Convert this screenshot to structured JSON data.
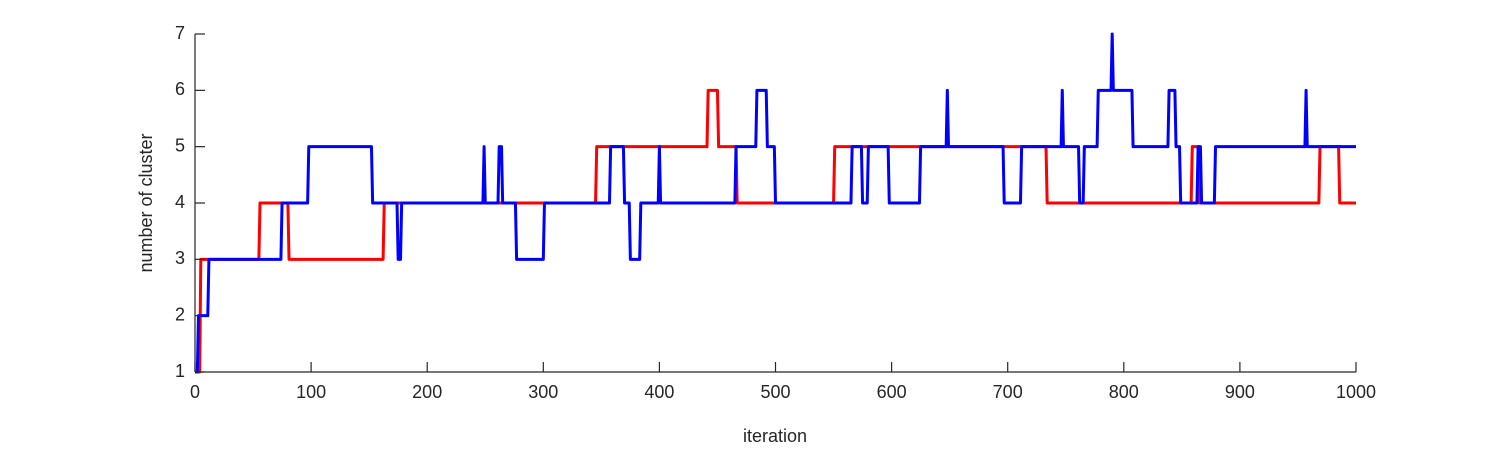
{
  "chart_data": {
    "type": "line",
    "x_label": "iteration",
    "y_label": "number of cluster",
    "xlim": [
      0,
      1000
    ],
    "xticks": [
      0,
      100,
      200,
      300,
      400,
      500,
      600,
      700,
      800,
      900,
      1000
    ],
    "ylim": [
      1,
      7
    ],
    "yticks": [
      1,
      2,
      3,
      4,
      5,
      6,
      7
    ],
    "series": [
      {
        "color": "#ff0000",
        "x": [
          0,
          4,
          5,
          55,
          56,
          80,
          81,
          162,
          163,
          345,
          346,
          441,
          442,
          450,
          451,
          466,
          467,
          550,
          551,
          733,
          734,
          858,
          859,
          864,
          865,
          968,
          969,
          985,
          986,
          1000
        ],
        "values": [
          1,
          1,
          3,
          3,
          4,
          4,
          3,
          3,
          4,
          4,
          5,
          5,
          6,
          6,
          5,
          5,
          4,
          4,
          5,
          5,
          4,
          4,
          5,
          5,
          4,
          4,
          5,
          5,
          4,
          4
        ]
      },
      {
        "color": "#0000ff",
        "x": [
          0,
          2,
          3,
          11,
          12,
          74,
          75,
          97,
          98,
          152,
          153,
          174,
          175,
          177,
          178,
          248,
          249,
          250,
          261,
          262,
          264,
          265,
          276,
          277,
          300,
          301,
          357,
          358,
          369,
          370,
          374,
          375,
          383,
          384,
          399,
          400,
          401,
          465,
          466,
          483,
          484,
          492,
          493,
          499,
          500,
          565,
          566,
          574,
          575,
          579,
          580,
          597,
          598,
          624,
          625,
          647,
          648,
          649,
          696,
          697,
          711,
          712,
          746,
          747,
          748,
          761,
          762,
          765,
          766,
          777,
          778,
          789,
          790,
          791,
          807,
          808,
          838,
          839,
          844,
          845,
          848,
          849,
          863,
          864,
          866,
          867,
          878,
          879,
          956,
          957,
          958,
          1000
        ],
        "values": [
          1,
          1,
          2,
          2,
          3,
          3,
          4,
          4,
          5,
          5,
          4,
          4,
          3,
          3,
          4,
          4,
          5,
          4,
          4,
          5,
          5,
          4,
          4,
          3,
          3,
          4,
          4,
          5,
          5,
          4,
          4,
          3,
          3,
          4,
          4,
          5,
          4,
          4,
          5,
          5,
          6,
          6,
          5,
          5,
          4,
          4,
          5,
          5,
          4,
          4,
          5,
          5,
          4,
          4,
          5,
          5,
          6,
          5,
          5,
          4,
          4,
          5,
          5,
          6,
          5,
          5,
          4,
          4,
          5,
          5,
          6,
          6,
          7,
          6,
          6,
          5,
          5,
          6,
          6,
          5,
          5,
          4,
          4,
          5,
          5,
          4,
          4,
          5,
          5,
          6,
          5,
          5
        ]
      }
    ]
  }
}
